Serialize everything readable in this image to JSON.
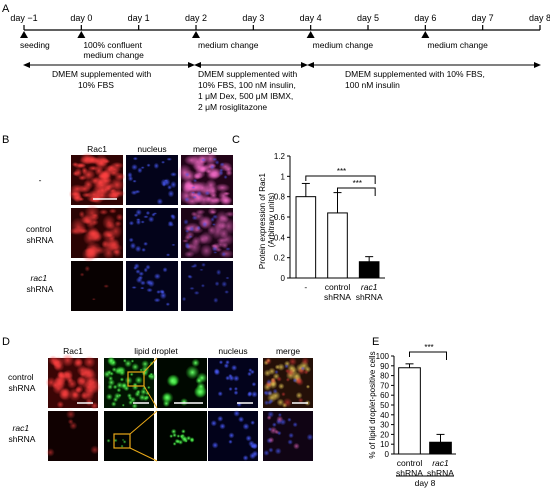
{
  "panels": {
    "A": "A",
    "B": "B",
    "C": "C",
    "D": "D",
    "E": "E"
  },
  "timeline": {
    "days": [
      "day −1",
      "day 0",
      "day 1",
      "day 2",
      "day 3",
      "day 4",
      "day 5",
      "day 6",
      "day 7",
      "day 8"
    ],
    "events": [
      {
        "lines": [
          "seeding"
        ]
      },
      {
        "lines": [
          "100% confluent",
          "medium change"
        ]
      },
      {
        "lines": [
          "medium change"
        ]
      },
      {
        "lines": [
          "medium change"
        ]
      },
      {
        "lines": [
          "medium change"
        ]
      }
    ],
    "media": [
      {
        "lines": [
          "DMEM supplemented with",
          "10% FBS"
        ]
      },
      {
        "lines": [
          "DMEM supplemented with",
          "10% FBS, 100 nM insulin,",
          "1 μM Dex, 500 μM IBMX,",
          "2 μM rosiglitazone"
        ]
      },
      {
        "lines": [
          "DMEM supplemented with 10% FBS,",
          "100 nM insulin"
        ]
      }
    ]
  },
  "panel_b": {
    "columns": [
      "Rac1",
      "nucleus",
      "merge"
    ],
    "rows": [
      {
        "lines": [
          "-"
        ]
      },
      {
        "lines": [
          "control",
          "shRNA"
        ]
      },
      {
        "lines": [
          "rac1",
          "shRNA"
        ]
      }
    ]
  },
  "panel_d": {
    "columns": [
      "Rac1",
      "lipid droplet",
      "nucleus",
      "merge"
    ],
    "rows": [
      {
        "lines": [
          "control",
          "shRNA"
        ]
      },
      {
        "lines": [
          "rac1",
          "shRNA"
        ]
      }
    ]
  },
  "colors": {
    "red_channel": "#b01818",
    "blue_channel": "#1a22a8",
    "lipid_green": "#18c818",
    "zoom_box": "#e8a818"
  },
  "chart_data": [
    {
      "id": "C",
      "type": "bar",
      "categories": [
        "-",
        "control shRNA",
        "rac1 shRNA"
      ],
      "values": [
        0.8,
        0.64,
        0.16
      ],
      "errors": [
        0.13,
        0.2,
        0.05
      ],
      "bar_fill": [
        "white",
        "white",
        "black"
      ],
      "ylabel_lines": [
        "Protein expression of Rac1",
        "(Arbitrary units)"
      ],
      "ylim": [
        0,
        1.2
      ],
      "yticks": [
        "0",
        "0.2",
        "0.4",
        "0.6",
        "0.8",
        "1",
        "1.2"
      ],
      "significance": [
        {
          "from": "-",
          "to": "rac1 shRNA",
          "label": "***"
        },
        {
          "from": "control shRNA",
          "to": "rac1 shRNA",
          "label": "***"
        }
      ]
    },
    {
      "id": "E",
      "type": "bar",
      "categories": [
        "control shRNA",
        "rac1 shRNA"
      ],
      "values": [
        88,
        12
      ],
      "errors": [
        4,
        8
      ],
      "bar_fill": [
        "white",
        "black"
      ],
      "ylabel": "% of lipid droplet-positive cells",
      "ylim": [
        0,
        100
      ],
      "yticks": [
        "0",
        "10",
        "20",
        "30",
        "40",
        "50",
        "60",
        "70",
        "80",
        "90",
        "100"
      ],
      "group_label": "day 8",
      "significance": [
        {
          "from": "control shRNA",
          "to": "rac1 shRNA",
          "label": "***"
        }
      ]
    }
  ]
}
